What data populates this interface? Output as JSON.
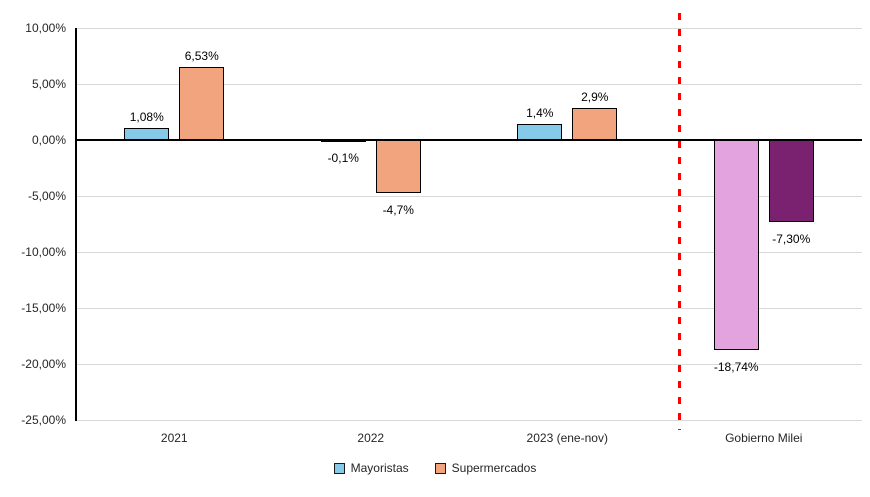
{
  "chart_data": {
    "type": "bar",
    "title": "",
    "xlabel": "",
    "ylabel": "",
    "categories": [
      "2021",
      "2022",
      "2023 (ene-nov)",
      "Gobierno Milei"
    ],
    "series": [
      {
        "name": "Mayoristas",
        "color": "#85CBE9",
        "values": [
          1.08,
          -0.1,
          1.4,
          -18.74
        ],
        "value_labels": [
          "1,08%",
          "-0,1%",
          "1,4%",
          "-18,74%"
        ]
      },
      {
        "name": "Supermercados",
        "color": "#F2A47E",
        "values": [
          6.53,
          -4.7,
          2.9,
          -7.3
        ],
        "value_labels": [
          "6,53%",
          "-4,7%",
          "2,9%",
          "-7,30%"
        ]
      }
    ],
    "bar_color_overrides": [
      {
        "category": "Gobierno Milei",
        "series": "Mayoristas",
        "color": "#E3A3DF"
      },
      {
        "category": "Gobierno Milei",
        "series": "Supermercados",
        "color": "#7A2170"
      }
    ],
    "y_axis": {
      "min": -25,
      "max": 10,
      "ticks": [
        {
          "label": "10,00%",
          "value": 10
        },
        {
          "label": "5,00%",
          "value": 5
        },
        {
          "label": "0,00%",
          "value": 0
        },
        {
          "label": "-5,00%",
          "value": -5
        },
        {
          "label": "-10,00%",
          "value": -10
        },
        {
          "label": "-15,00%",
          "value": -15
        },
        {
          "label": "-20,00%",
          "value": -20
        },
        {
          "label": "-25,00%",
          "value": -25
        }
      ]
    },
    "grid": true,
    "legend": {
      "position": "bottom",
      "entries": [
        {
          "label": "Mayoristas",
          "color": "#85CBE9"
        },
        {
          "label": "Supermercados",
          "color": "#F2A47E"
        }
      ]
    },
    "divider": {
      "style": "dashed-vertical-line",
      "color": "#FF0000",
      "between_categories": [
        "2023 (ene-nov)",
        "Gobierno Milei"
      ]
    }
  }
}
